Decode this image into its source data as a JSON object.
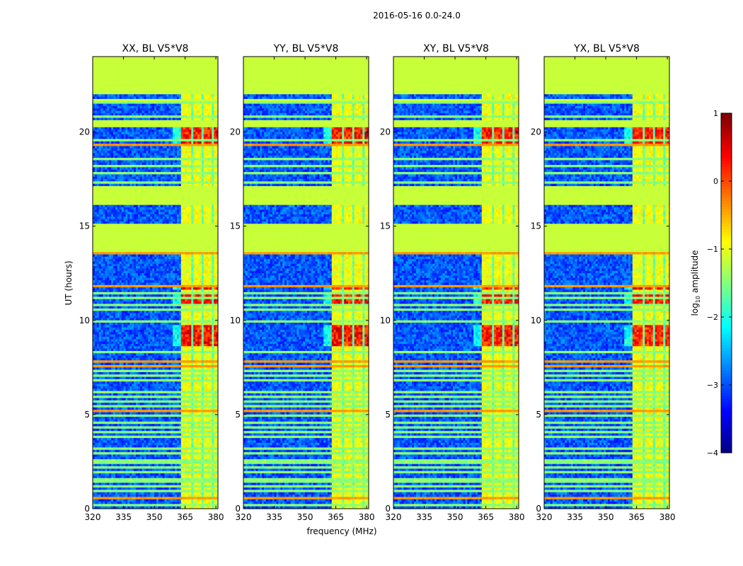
{
  "figure_title": "2016-05-16 0.0-24.0",
  "chart_data": {
    "type": "heatmap",
    "title": "2016-05-16 0.0-24.0",
    "xlabel": "frequency (MHz)",
    "ylabel": "UT (hours)",
    "xlim": [
      320,
      381
    ],
    "ylim": [
      0,
      24
    ],
    "x_ticks": [
      320,
      335,
      350,
      365,
      380
    ],
    "y_ticks": [
      0,
      5,
      10,
      15,
      20
    ],
    "colorbar": {
      "label": "log10 amplitude",
      "label_base": "log",
      "label_sub": "10",
      "label_rest": " amplitude",
      "range": [
        -4,
        1
      ],
      "ticks": [
        1,
        0,
        -1,
        -2,
        -3,
        -4
      ],
      "colormap": "jet"
    },
    "panels": [
      {
        "title": "XX, BL V5*V8",
        "strong_scale": 1.0
      },
      {
        "title": "YY, BL V5*V8",
        "strong_scale": 1.08
      },
      {
        "title": "XY, BL V5*V8",
        "strong_scale": 0.95
      },
      {
        "title": "YX, BL V5*V8",
        "strong_scale": 0.9
      }
    ],
    "flagged_value": -1.15,
    "flagged_ut_ranges": [
      [
        22.0,
        24.0
      ],
      [
        20.3,
        20.6
      ],
      [
        16.1,
        17.1
      ],
      [
        13.6,
        15.1
      ],
      [
        21.6,
        21.7
      ],
      [
        21.1,
        21.15
      ]
    ],
    "signal_band_mhz": [
      363.5,
      383
    ],
    "bright_ut_ranges": [
      [
        19.3,
        20.3
      ],
      [
        13.8,
        14.3
      ],
      [
        14.6,
        15.0
      ],
      [
        8.6,
        9.7
      ],
      [
        10.9,
        11.4
      ],
      [
        11.6,
        11.75
      ]
    ],
    "line_uts": [
      0.2,
      0.5,
      0.6,
      0.95,
      1.15,
      1.4,
      1.6,
      1.9,
      2.15,
      2.4,
      2.6,
      2.95,
      3.2,
      3.5,
      3.8,
      4.1,
      4.35,
      4.6,
      4.9,
      5.2,
      5.45,
      5.7,
      5.95,
      6.2,
      6.5,
      6.8,
      7.05,
      7.3,
      7.55,
      7.8,
      8.0,
      8.3,
      9.95,
      10.25,
      10.55,
      10.8,
      11.15,
      11.45,
      11.85,
      12.0,
      17.3,
      17.5,
      17.85,
      18.2,
      18.6,
      19.0,
      19.3,
      19.55,
      20.85,
      21.25,
      21.55
    ],
    "orange_line_uts": [
      0.5,
      0.6,
      7.8,
      7.55,
      19.3,
      11.8,
      5.2,
      13.6
    ]
  }
}
